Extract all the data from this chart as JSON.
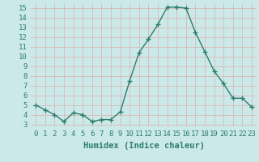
{
  "x": [
    0,
    1,
    2,
    3,
    4,
    5,
    6,
    7,
    8,
    9,
    10,
    11,
    12,
    13,
    14,
    15,
    16,
    17,
    18,
    19,
    20,
    21,
    22,
    23
  ],
  "y": [
    5.0,
    4.5,
    4.0,
    3.3,
    4.2,
    4.0,
    3.3,
    3.5,
    3.5,
    4.3,
    7.5,
    10.4,
    11.8,
    13.3,
    15.1,
    15.1,
    15.0,
    12.5,
    10.5,
    8.5,
    7.2,
    5.7,
    5.7,
    4.8
  ],
  "line_color": "#2d7d6e",
  "marker": "+",
  "marker_size": 4,
  "marker_linewidth": 1.0,
  "xlabel": "Humidex (Indice chaleur)",
  "xlim": [
    -0.5,
    23.5
  ],
  "ylim": [
    2.8,
    15.5
  ],
  "yticks": [
    3,
    4,
    5,
    6,
    7,
    8,
    9,
    10,
    11,
    12,
    13,
    14,
    15
  ],
  "xticks": [
    0,
    1,
    2,
    3,
    4,
    5,
    6,
    7,
    8,
    9,
    10,
    11,
    12,
    13,
    14,
    15,
    16,
    17,
    18,
    19,
    20,
    21,
    22,
    23
  ],
  "bg_color": "#cce9e9",
  "grid_color": "#d9b8b8",
  "line_color_grid": "#d9b8b8",
  "text_color": "#2d7d6e",
  "xlabel_fontsize": 7.5,
  "xlabel_weight": "bold",
  "tick_labelsize": 6.5,
  "linewidth": 1.0
}
